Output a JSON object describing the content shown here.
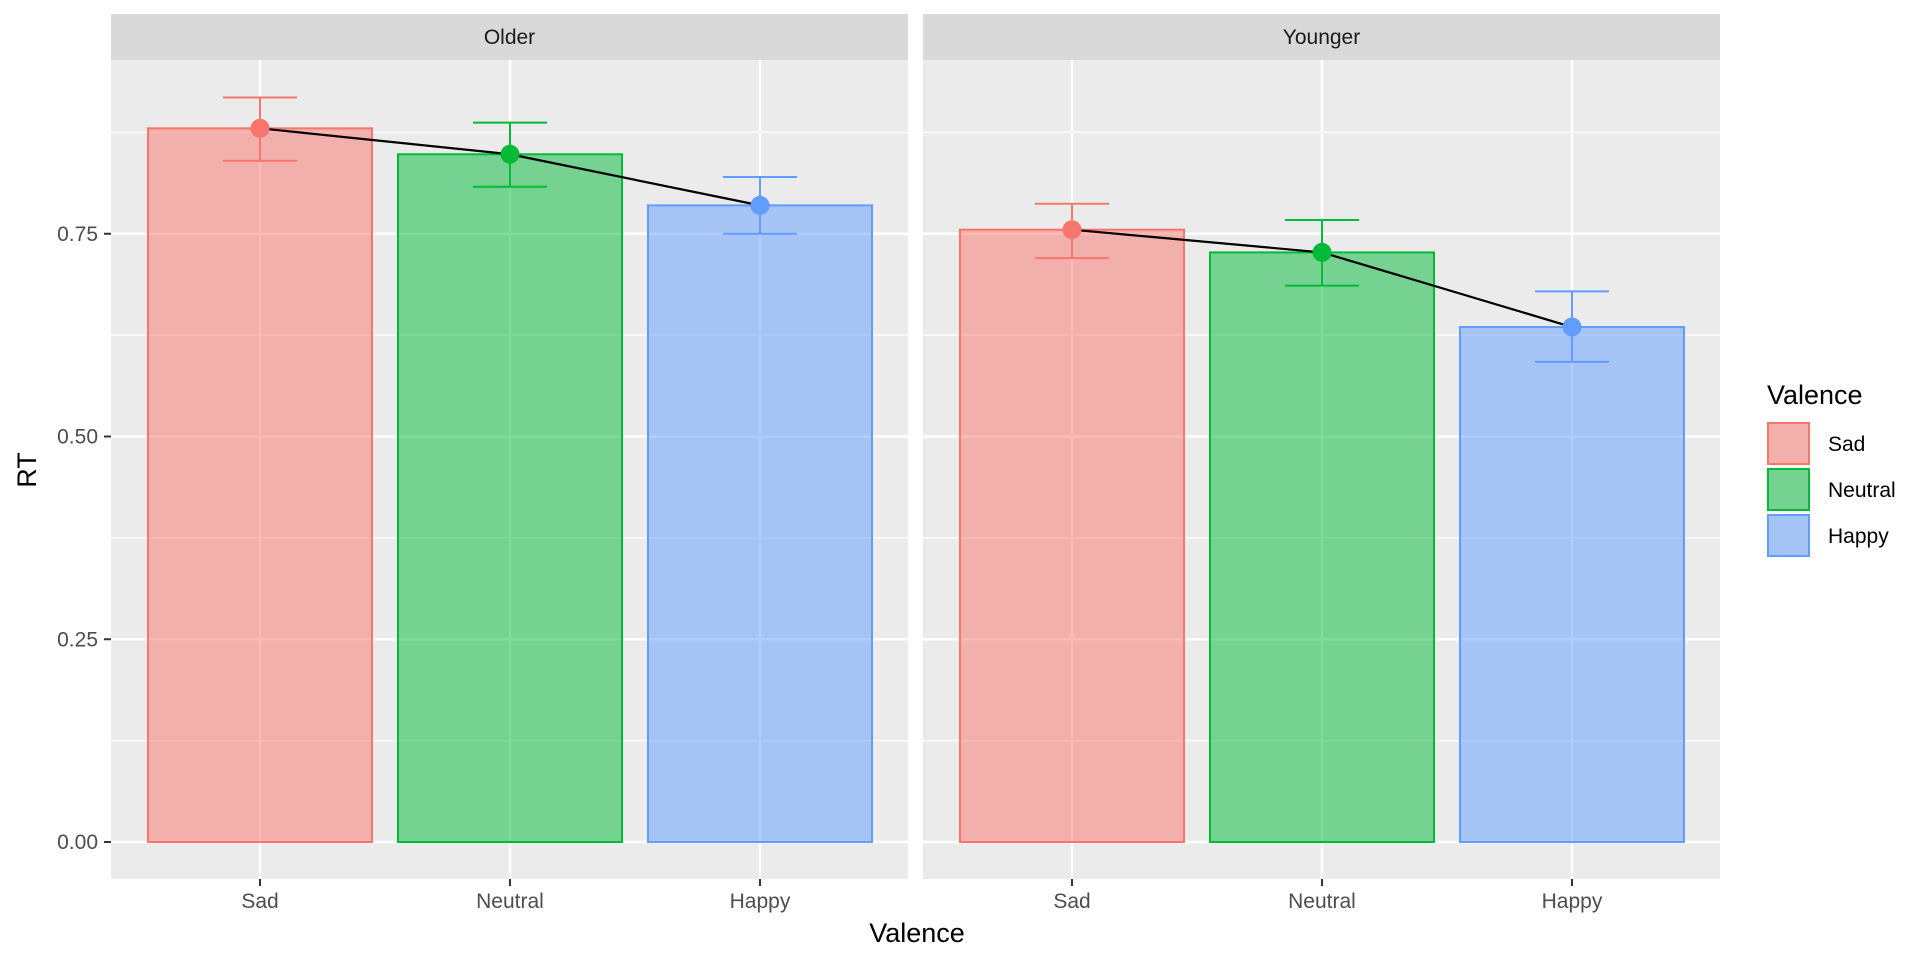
{
  "chart_data": {
    "type": "bar",
    "xlabel": "Valence",
    "ylabel": "RT",
    "ylim": [
      0,
      0.96
    ],
    "yticks": [
      "0.00",
      "0.25",
      "0.50",
      "0.75"
    ],
    "yticks_values": [
      0,
      0.25,
      0.5,
      0.75
    ],
    "categories": [
      "Sad",
      "Neutral",
      "Happy"
    ],
    "colors": {
      "Sad": "#F8766D",
      "Neutral": "#00BA38",
      "Happy": "#619CFF"
    },
    "grid": true,
    "legend": {
      "title": "Valence",
      "position": "right",
      "entries": [
        "Sad",
        "Neutral",
        "Happy"
      ]
    },
    "panels": [
      {
        "title": "Older",
        "values": [
          0.88,
          0.848,
          0.785
        ],
        "error_low": [
          0.84,
          0.808,
          0.75
        ],
        "error_high": [
          0.918,
          0.887,
          0.82
        ]
      },
      {
        "title": "Younger",
        "values": [
          0.755,
          0.727,
          0.635
        ],
        "error_low": [
          0.72,
          0.686,
          0.592
        ],
        "error_high": [
          0.787,
          0.767,
          0.679
        ]
      }
    ]
  }
}
